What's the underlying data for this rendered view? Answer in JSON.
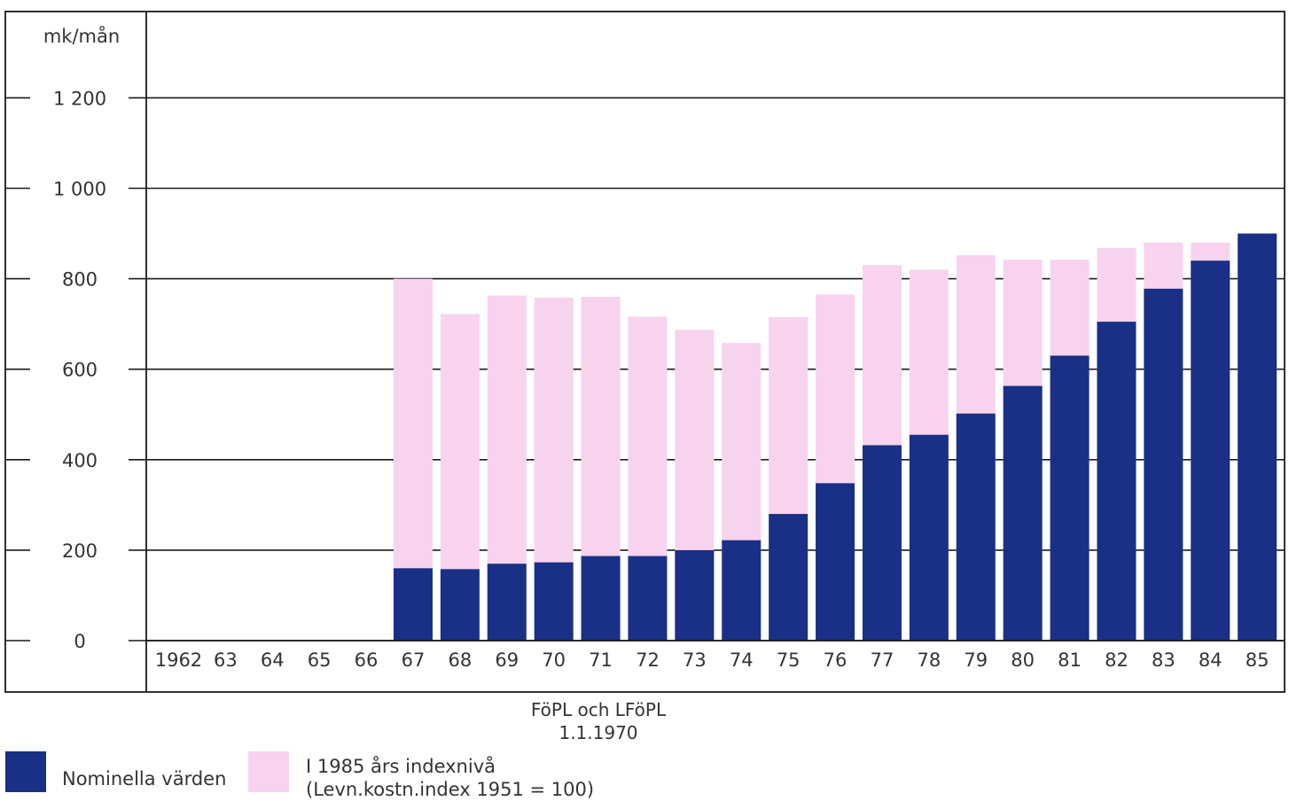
{
  "chart_data": {
    "type": "bar",
    "yunit_label": "mk/mån",
    "categories": [
      "1962",
      "63",
      "64",
      "65",
      "66",
      "67",
      "68",
      "69",
      "70",
      "71",
      "72",
      "73",
      "74",
      "75",
      "76",
      "77",
      "78",
      "79",
      "80",
      "81",
      "82",
      "83",
      "84",
      "85"
    ],
    "series": [
      {
        "name": "Nominella värden",
        "color": "#1a2f86",
        "values": [
          0,
          0,
          0,
          0,
          0,
          160,
          158,
          170,
          173,
          187,
          187,
          200,
          222,
          280,
          348,
          432,
          455,
          502,
          563,
          630,
          705,
          778,
          840,
          900
        ]
      },
      {
        "name": "I 1985 års indexnivå (Levn.kostn.index 1951 = 100)",
        "color": "#f7d3ee",
        "values": [
          0,
          0,
          0,
          0,
          0,
          800,
          722,
          763,
          758,
          760,
          716,
          687,
          658,
          715,
          765,
          830,
          820,
          852,
          842,
          842,
          868,
          880,
          880,
          900
        ]
      }
    ],
    "yticks": [
      {
        "value": 0,
        "label": "0"
      },
      {
        "value": 200,
        "label": "200"
      },
      {
        "value": 400,
        "label": "400"
      },
      {
        "value": 600,
        "label": "600"
      },
      {
        "value": 800,
        "label": "800"
      },
      {
        "value": 1000,
        "label": "1 000"
      },
      {
        "value": 1200,
        "label": "1 200"
      }
    ],
    "ylim": [
      0,
      1400
    ],
    "grid": true,
    "annotation": [
      "FöPL och LFöPL",
      "1.1.1970"
    ]
  },
  "legend": {
    "nominal_label": "Nominella värden",
    "index_label_line1": "I 1985 års indexnivå",
    "index_label_line2": "(Levn.kostn.index 1951 = 100)"
  }
}
